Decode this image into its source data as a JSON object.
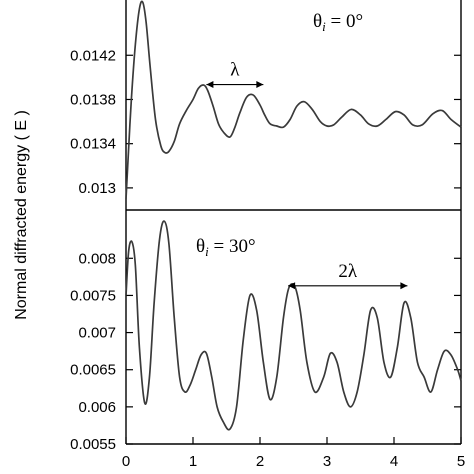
{
  "chart_data": [
    {
      "type": "line",
      "panel": "top",
      "ylabel": "Normal diffracted energy  ( E )",
      "xlim": [
        0,
        5
      ],
      "ylim": [
        0.0128,
        0.0147
      ],
      "yticks": [
        "0.0142",
        "0.0138",
        "0.0134",
        "0.013"
      ],
      "ytick_values": [
        0.0142,
        0.0138,
        0.0134,
        0.013
      ],
      "annotation_angle": {
        "symbol": "θ",
        "sub": "i",
        "rest": " = 0°"
      },
      "annotation_span": {
        "label": "λ",
        "x_start": 1.2,
        "x_end": 2.05,
        "y": 0.013935
      },
      "x": [
        0.0,
        0.03,
        0.08,
        0.14,
        0.2,
        0.25,
        0.3,
        0.36,
        0.44,
        0.52,
        0.58,
        0.64,
        0.72,
        0.8,
        0.9,
        1.0,
        1.08,
        1.16,
        1.22,
        1.3,
        1.38,
        1.46,
        1.55,
        1.62,
        1.7,
        1.8,
        1.9,
        2.0,
        2.07,
        2.15,
        2.25,
        2.35,
        2.45,
        2.55,
        2.66,
        2.78,
        2.9,
        3.0,
        3.1,
        3.22,
        3.36,
        3.5,
        3.62,
        3.75,
        3.88,
        4.02,
        4.15,
        4.28,
        4.42,
        4.58,
        4.72,
        4.85,
        5.0
      ],
      "values": [
        0.0129,
        0.01325,
        0.0138,
        0.0143,
        0.01462,
        0.01468,
        0.0145,
        0.0141,
        0.01362,
        0.01338,
        0.01332,
        0.01333,
        0.01342,
        0.01358,
        0.0137,
        0.0138,
        0.0139,
        0.01393,
        0.01388,
        0.01374,
        0.01358,
        0.0135,
        0.01346,
        0.01354,
        0.01368,
        0.01382,
        0.01384,
        0.01375,
        0.01366,
        0.01358,
        0.01356,
        0.01355,
        0.01362,
        0.01374,
        0.01378,
        0.01371,
        0.0136,
        0.01356,
        0.01357,
        0.01364,
        0.01371,
        0.01366,
        0.01358,
        0.01356,
        0.01362,
        0.01369,
        0.01366,
        0.01357,
        0.01357,
        0.01367,
        0.0137,
        0.01362,
        0.01355
      ]
    },
    {
      "type": "line",
      "panel": "bottom",
      "xlabel": "",
      "xlim": [
        0,
        5
      ],
      "ylim": [
        0.0055,
        0.00865
      ],
      "xticks": [
        "0",
        "1",
        "2",
        "3",
        "4",
        "5"
      ],
      "xtick_values": [
        0,
        1,
        2,
        3,
        4,
        5
      ],
      "yticks": [
        "0.008",
        "0.0075",
        "0.007",
        "0.0065",
        "0.006",
        "0.0055"
      ],
      "ytick_values": [
        0.008,
        0.0075,
        0.007,
        0.0065,
        0.006,
        0.0055
      ],
      "annotation_angle": {
        "symbol": "θ",
        "sub": "i",
        "rest": " = 30°"
      },
      "annotation_span": {
        "label": "2λ",
        "x_start": 2.42,
        "x_end": 4.2,
        "y": 0.00763
      },
      "x": [
        0.0,
        0.04,
        0.09,
        0.14,
        0.2,
        0.28,
        0.35,
        0.42,
        0.5,
        0.57,
        0.64,
        0.72,
        0.8,
        0.88,
        0.96,
        1.04,
        1.12,
        1.2,
        1.28,
        1.36,
        1.45,
        1.55,
        1.65,
        1.75,
        1.85,
        1.95,
        2.05,
        2.15,
        2.25,
        2.35,
        2.43,
        2.52,
        2.6,
        2.7,
        2.82,
        2.95,
        3.05,
        3.15,
        3.25,
        3.35,
        3.45,
        3.55,
        3.65,
        3.75,
        3.85,
        3.95,
        4.05,
        4.15,
        4.25,
        4.35,
        4.45,
        4.55,
        4.65,
        4.75,
        4.85,
        4.95,
        5.0
      ],
      "values": [
        0.0075,
        0.0081,
        0.00822,
        0.0079,
        0.0068,
        0.00605,
        0.0064,
        0.0074,
        0.00825,
        0.0085,
        0.0082,
        0.0072,
        0.0064,
        0.0062,
        0.0063,
        0.0065,
        0.0067,
        0.00672,
        0.0064,
        0.006,
        0.0058,
        0.0057,
        0.006,
        0.0069,
        0.0075,
        0.0073,
        0.0066,
        0.0061,
        0.0064,
        0.0072,
        0.0076,
        0.00762,
        0.0073,
        0.0066,
        0.0062,
        0.0064,
        0.00672,
        0.0066,
        0.0062,
        0.006,
        0.0062,
        0.0067,
        0.0073,
        0.0072,
        0.0066,
        0.0064,
        0.0068,
        0.0074,
        0.0072,
        0.0066,
        0.0064,
        0.0062,
        0.0065,
        0.00675,
        0.0067,
        0.0065,
        0.00635
      ]
    }
  ]
}
